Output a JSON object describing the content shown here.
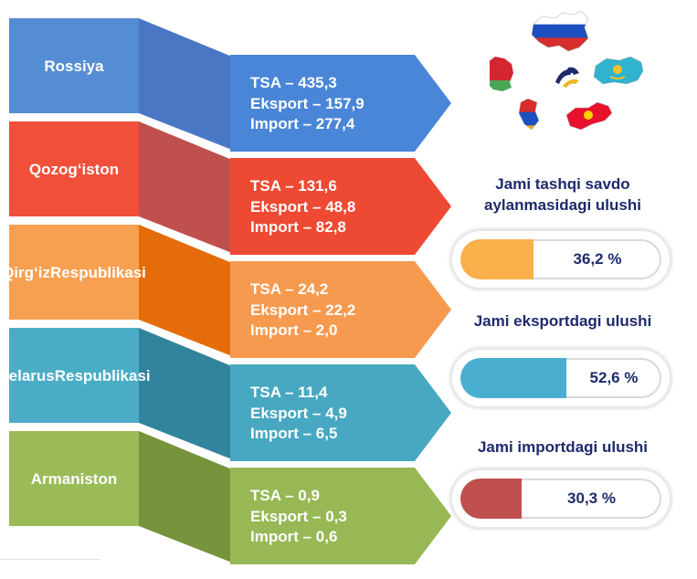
{
  "countries": [
    {
      "label": [
        "Rossiya"
      ],
      "lines": [
        "TSA – 435,3",
        "Eksport – 157,9",
        "Import – 277,4"
      ],
      "color": "#548dd4",
      "ribbon_color": "#4a77c4",
      "arrow_color": "#4a86d8"
    },
    {
      "label": [
        "Qozog‘iston"
      ],
      "lines": [
        "TSA – 131,6",
        "Eksport – 48,8",
        "Import – 82,8"
      ],
      "color": "#f0503a",
      "ribbon_color": "#c0504d",
      "arrow_color": "#ee4a33"
    },
    {
      "label": [
        "Qirg‘iz",
        "Respublikasi"
      ],
      "lines": [
        "TSA – 24,2",
        "Eksport – 22,2",
        "Import – 2,0"
      ],
      "color": "#f7a052",
      "ribbon_color": "#e46c0a",
      "arrow_color": "#f59a4f"
    },
    {
      "label": [
        "Belarus",
        "Respublikasi"
      ],
      "lines": [
        "TSA – 11,4",
        "Eksport – 4,9",
        "Import – 6,5"
      ],
      "color": "#4bacc6",
      "ribbon_color": "#31849b",
      "arrow_color": "#48a8c2"
    },
    {
      "label": [
        "Armaniston"
      ],
      "lines": [
        "TSA – 0,9",
        "Eksport – 0,3",
        "Import – 0,6"
      ],
      "color": "#9bbb59",
      "ribbon_color": "#77933c",
      "arrow_color": "#97b855"
    }
  ],
  "flags": [
    "russia-map-flag",
    "belarus-map-flag",
    "eaeu-emblem",
    "kazakhstan-map-flag",
    "armenia-map-flag",
    "kyrgyzstan-map-flag"
  ],
  "shares": [
    {
      "title": [
        "Jami tashqi savdo",
        "aylanmasidagi ulushi"
      ],
      "value_text": "36,2 %",
      "value": 0.362,
      "color": "#fbb04b"
    },
    {
      "title": [
        "Jami eksportdagi ulushi"
      ],
      "value_text": "52,6 %",
      "value": 0.526,
      "color": "#4aaed0"
    },
    {
      "title": [
        "Jami importdagi ulushi"
      ],
      "value_text": "30,3 %",
      "value": 0.303,
      "color": "#c0504d"
    }
  ]
}
